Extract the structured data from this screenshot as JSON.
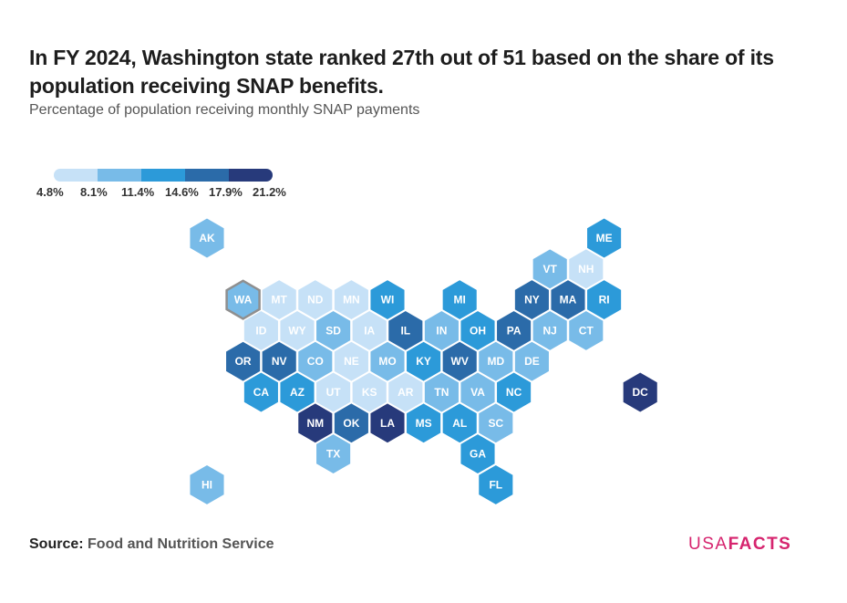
{
  "title": "In FY 2024, Washington state ranked 27th out of 51 based on the share of its population receiving SNAP benefits.",
  "subtitle": "Percentage of population receiving monthly SNAP payments",
  "legend": {
    "labels": [
      "4.8%",
      "8.1%",
      "11.4%",
      "14.6%",
      "17.9%",
      "21.2%"
    ],
    "colors": [
      "#c6e1f7",
      "#78bbe8",
      "#2c9ad9",
      "#2b6ba9",
      "#273a7b"
    ]
  },
  "chart_data": {
    "type": "heatmap",
    "title": "In FY 2024, Washington state ranked 27th out of 51 based on the share of its population receiving SNAP benefits.",
    "subtitle": "Percentage of population receiving monthly SNAP payments",
    "bins": [
      4.8,
      8.1,
      11.4,
      14.6,
      17.9,
      21.2
    ],
    "highlighted": "WA",
    "states": [
      {
        "abbr": "AK",
        "bin": 1
      },
      {
        "abbr": "ME",
        "bin": 2
      },
      {
        "abbr": "VT",
        "bin": 1
      },
      {
        "abbr": "NH",
        "bin": 0
      },
      {
        "abbr": "WA",
        "bin": 1
      },
      {
        "abbr": "MT",
        "bin": 0
      },
      {
        "abbr": "ND",
        "bin": 0
      },
      {
        "abbr": "MN",
        "bin": 0
      },
      {
        "abbr": "WI",
        "bin": 2
      },
      {
        "abbr": "MI",
        "bin": 2
      },
      {
        "abbr": "NY",
        "bin": 3
      },
      {
        "abbr": "MA",
        "bin": 3
      },
      {
        "abbr": "RI",
        "bin": 2
      },
      {
        "abbr": "ID",
        "bin": 0
      },
      {
        "abbr": "WY",
        "bin": 0
      },
      {
        "abbr": "SD",
        "bin": 1
      },
      {
        "abbr": "IA",
        "bin": 0
      },
      {
        "abbr": "IL",
        "bin": 3
      },
      {
        "abbr": "IN",
        "bin": 1
      },
      {
        "abbr": "OH",
        "bin": 2
      },
      {
        "abbr": "PA",
        "bin": 3
      },
      {
        "abbr": "NJ",
        "bin": 1
      },
      {
        "abbr": "CT",
        "bin": 1
      },
      {
        "abbr": "OR",
        "bin": 3
      },
      {
        "abbr": "NV",
        "bin": 3
      },
      {
        "abbr": "CO",
        "bin": 1
      },
      {
        "abbr": "NE",
        "bin": 0
      },
      {
        "abbr": "MO",
        "bin": 1
      },
      {
        "abbr": "KY",
        "bin": 2
      },
      {
        "abbr": "WV",
        "bin": 3
      },
      {
        "abbr": "MD",
        "bin": 1
      },
      {
        "abbr": "DE",
        "bin": 1
      },
      {
        "abbr": "CA",
        "bin": 2
      },
      {
        "abbr": "AZ",
        "bin": 2
      },
      {
        "abbr": "UT",
        "bin": 0
      },
      {
        "abbr": "KS",
        "bin": 0
      },
      {
        "abbr": "AR",
        "bin": 0
      },
      {
        "abbr": "TN",
        "bin": 1
      },
      {
        "abbr": "VA",
        "bin": 1
      },
      {
        "abbr": "NC",
        "bin": 2
      },
      {
        "abbr": "DC",
        "bin": 4
      },
      {
        "abbr": "NM",
        "bin": 4
      },
      {
        "abbr": "OK",
        "bin": 3
      },
      {
        "abbr": "LA",
        "bin": 4
      },
      {
        "abbr": "MS",
        "bin": 2
      },
      {
        "abbr": "AL",
        "bin": 2
      },
      {
        "abbr": "SC",
        "bin": 1
      },
      {
        "abbr": "TX",
        "bin": 1
      },
      {
        "abbr": "GA",
        "bin": 2
      },
      {
        "abbr": "HI",
        "bin": 1
      },
      {
        "abbr": "FL",
        "bin": 2
      }
    ]
  },
  "source": {
    "label": "Source:",
    "value": "Food and Nutrition Service"
  },
  "logo": {
    "part1": "USA",
    "part2": "FACTS"
  }
}
